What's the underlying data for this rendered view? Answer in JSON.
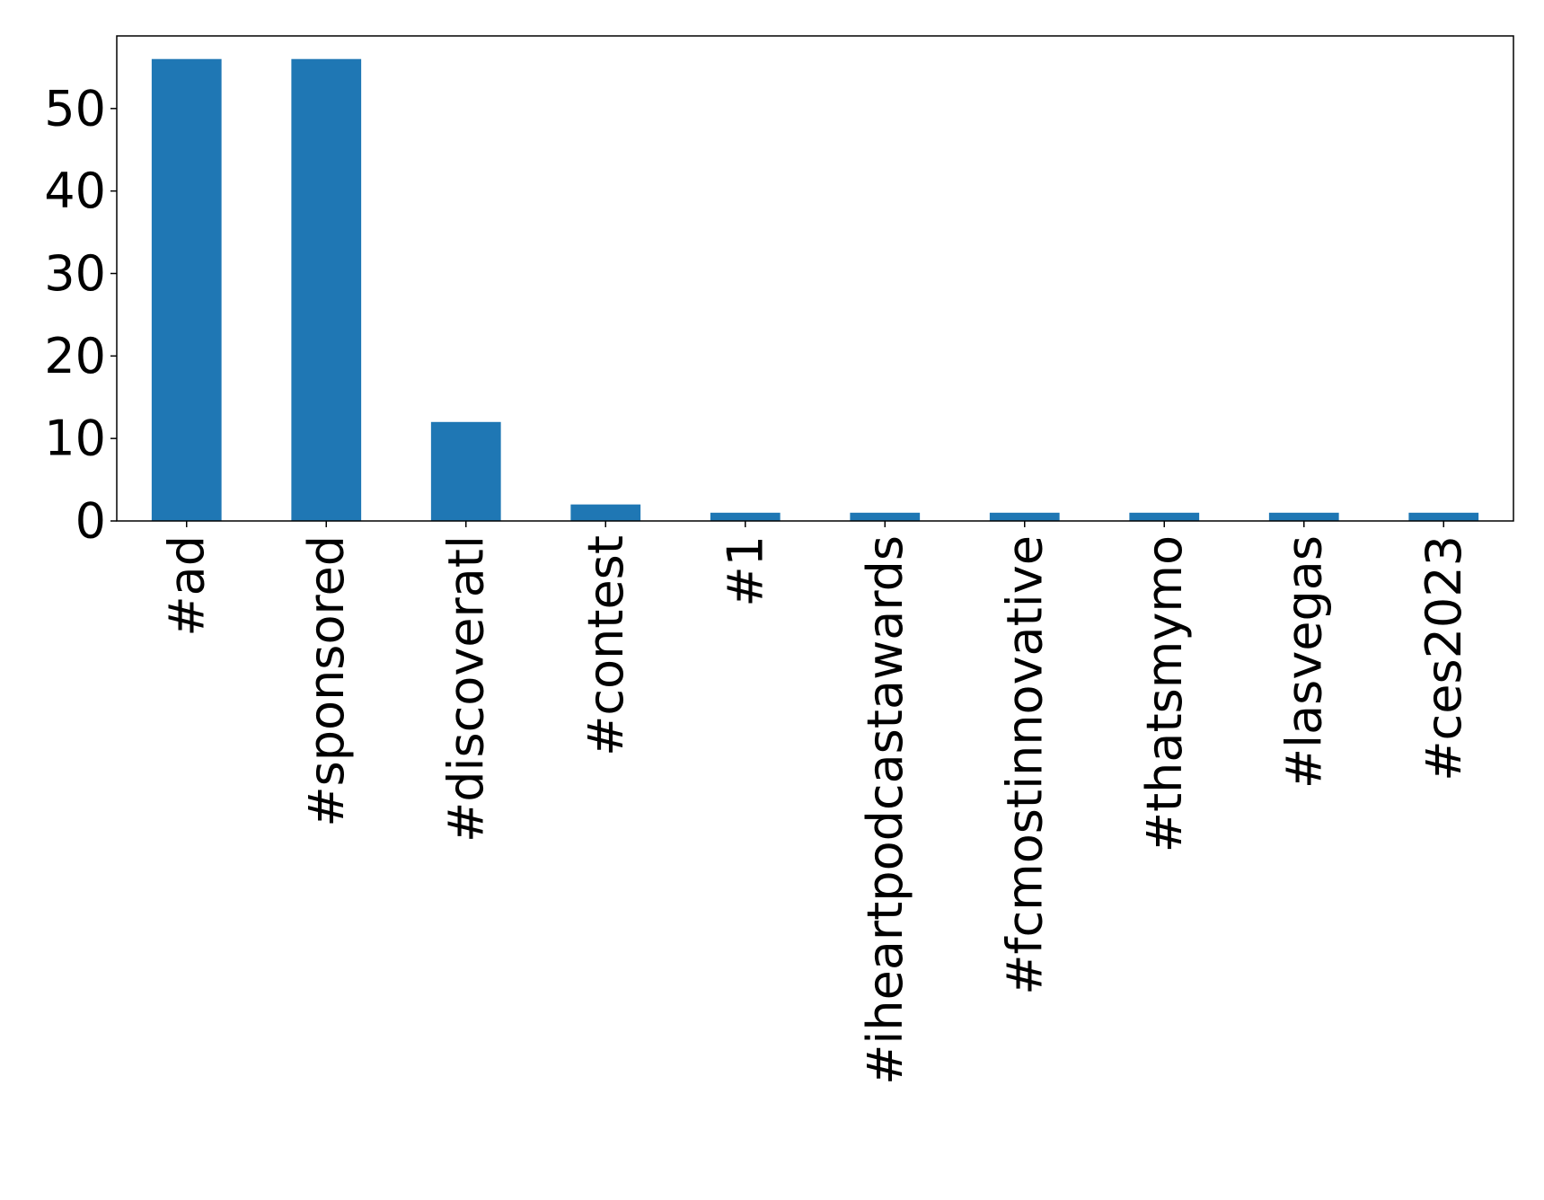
{
  "chart_data": {
    "type": "bar",
    "title": "",
    "xlabel": "",
    "ylabel": "",
    "categories": [
      "#ad",
      "#sponsored",
      "#discoveratl",
      "#contest",
      "#1",
      "#iheartpodcastawards",
      "#fcmostinnovative",
      "#thatsmymo",
      "#lasvegas",
      "#ces2023"
    ],
    "values": [
      56,
      56,
      12,
      2,
      1,
      1,
      1,
      1,
      1,
      1
    ],
    "ylim": [
      0,
      58.8
    ],
    "yticks": [
      0,
      10,
      20,
      30,
      40,
      50
    ],
    "ytick_labels": [
      "0",
      "10",
      "20",
      "30",
      "40",
      "50"
    ],
    "bar_color": "#1f77b4",
    "grid": false,
    "legend": "none"
  }
}
